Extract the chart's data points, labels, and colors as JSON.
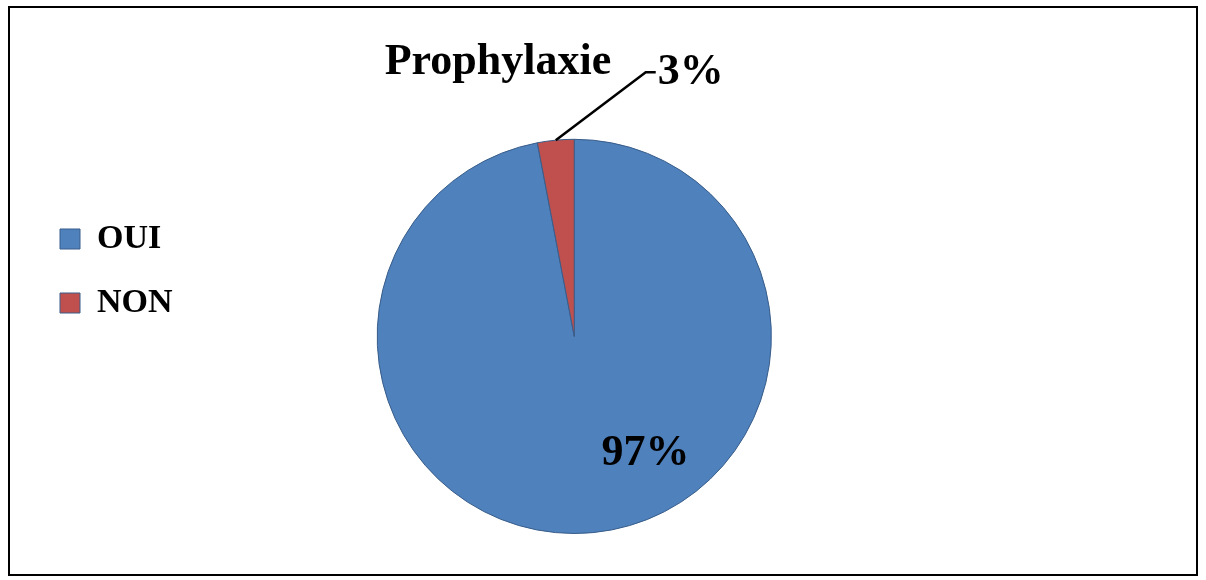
{
  "chart_data": {
    "type": "pie",
    "title": "Prophylaxie",
    "categories": [
      "OUI",
      "NON"
    ],
    "values": [
      97,
      3
    ],
    "colors": [
      "#4f81bd",
      "#c0504d"
    ],
    "value_labels": [
      "97%",
      "3%"
    ],
    "legend": "left"
  }
}
